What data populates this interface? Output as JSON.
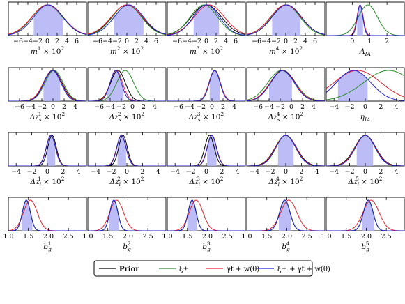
{
  "colors": {
    "prior": "#000000",
    "xi": "#2a8a2a",
    "gamma": "#e0202a",
    "combined": "#2020d0",
    "band": "#b0b0f5"
  },
  "legend": {
    "items": [
      {
        "key": "prior",
        "label": "Prior"
      },
      {
        "key": "xi",
        "label": "ξ±"
      },
      {
        "key": "gamma",
        "label": "γt + w(θ)"
      },
      {
        "key": "combined",
        "label": "ξ± + γt + w(θ)"
      }
    ]
  },
  "chart_data": [
    {
      "row": 0,
      "col": 0,
      "type": "line",
      "param": "m1",
      "xlabel": "m^1 × 10^2",
      "xlim": [
        -8,
        8
      ],
      "xticks": [
        -6,
        -4,
        -2,
        0,
        2,
        4,
        6
      ],
      "series": {
        "prior": [
          0,
          3.1
        ],
        "xi": [
          0,
          3.1
        ],
        "gamma": [
          0,
          3.2
        ],
        "combined": [
          0.2,
          3.0
        ]
      },
      "band": [
        -2.8,
        3.2
      ]
    },
    {
      "row": 0,
      "col": 1,
      "type": "line",
      "param": "m2",
      "xlabel": "m^2 × 10^2",
      "xlim": [
        -8,
        8
      ],
      "xticks": [
        -6,
        -4,
        -2,
        0,
        2,
        4,
        6
      ],
      "series": {
        "prior": [
          0,
          3.1
        ],
        "xi": [
          0,
          3.0
        ],
        "gamma": [
          0,
          3.2
        ],
        "combined": [
          0.4,
          3.0
        ]
      },
      "band": [
        -2.6,
        3.4
      ]
    },
    {
      "row": 0,
      "col": 2,
      "type": "line",
      "param": "m3",
      "xlabel": "m^3 × 10^2",
      "xlim": [
        -8,
        8
      ],
      "xticks": [
        -6,
        -4,
        -2,
        0,
        2,
        4,
        6
      ],
      "series": {
        "prior": [
          0,
          3.1
        ],
        "xi": [
          -0.5,
          2.8
        ],
        "gamma": [
          0.6,
          3.1
        ],
        "combined": [
          0,
          2.7
        ]
      },
      "band": [
        -2.6,
        2.6
      ]
    },
    {
      "row": 0,
      "col": 3,
      "type": "line",
      "param": "m4",
      "xlabel": "m^4 × 10^2",
      "xlim": [
        -8,
        8
      ],
      "xticks": [
        -6,
        -4,
        -2,
        0,
        2,
        4,
        6
      ],
      "series": {
        "prior": [
          0,
          3.1
        ],
        "xi": [
          0,
          2.9
        ],
        "gamma": [
          0,
          3.1
        ],
        "combined": [
          0.2,
          3.0
        ]
      },
      "band": [
        -2.8,
        3.0
      ]
    },
    {
      "row": 0,
      "col": 4,
      "type": "line",
      "param": "A_IA",
      "xlabel": "A_IA",
      "xlim": [
        -1.5,
        3
      ],
      "xticks": [
        0,
        1,
        2
      ],
      "series": {
        "xi": [
          0.9,
          0.55
        ],
        "gamma": [
          0.45,
          0.18
        ],
        "combined": [
          0.45,
          0.16
        ]
      },
      "band": [
        0.28,
        0.62
      ]
    },
    {
      "row": 1,
      "col": 0,
      "type": "line",
      "param": "dz_s1",
      "xlabel": "Δz_s^1 × 10^2",
      "xlim": [
        -8,
        6
      ],
      "xticks": [
        -6,
        -4,
        -2,
        0,
        2,
        4
      ],
      "series": {
        "prior": [
          0,
          1.6
        ],
        "xi": [
          0.2,
          1.6
        ],
        "gamma": [
          -0.1,
          1.6
        ],
        "combined": [
          -0.1,
          1.5
        ]
      },
      "band": [
        -1.7,
        1.3
      ]
    },
    {
      "row": 1,
      "col": 1,
      "type": "line",
      "param": "dz_s2",
      "xlabel": "Δz_s^2 × 10^2",
      "xlim": [
        -8,
        6
      ],
      "xticks": [
        -6,
        -4,
        -2,
        0,
        2,
        4
      ],
      "series": {
        "prior": [
          -2.6,
          1.3
        ],
        "xi": [
          -1.3,
          1.5
        ],
        "gamma": [
          -2.9,
          1.1
        ],
        "combined": [
          -3.0,
          1.0
        ]
      },
      "band": [
        -4.6,
        -1.6
      ]
    },
    {
      "row": 1,
      "col": 2,
      "type": "line",
      "param": "dz_s3",
      "xlabel": "Δz_s^3 × 10^2",
      "xlim": [
        -8,
        6
      ],
      "xticks": [
        -6,
        -4,
        -2,
        0,
        2,
        4
      ],
      "series": {
        "prior": [
          0.5,
          1.0
        ],
        "xi": [
          0.5,
          1.0
        ],
        "gamma": [
          0.5,
          1.0
        ],
        "combined": [
          0.5,
          0.95
        ]
      },
      "band": [
        -0.4,
        1.4
      ]
    },
    {
      "row": 1,
      "col": 3,
      "type": "line",
      "param": "dz_s4",
      "xlabel": "Δz_s^4 × 10^2",
      "xlim": [
        -8,
        6
      ],
      "xticks": [
        -6,
        -4,
        -2,
        0,
        2,
        4
      ],
      "series": {
        "prior": [
          -1.5,
          2.2
        ],
        "xi": [
          -1.8,
          2.4
        ],
        "gamma": [
          -1.6,
          2.2
        ],
        "combined": [
          -1.6,
          2.1
        ]
      },
      "band": [
        -4.0,
        0.1
      ]
    },
    {
      "row": 1,
      "col": 4,
      "type": "line",
      "param": "eta_IA",
      "xlabel": "η_IA",
      "xlim": [
        -5,
        5
      ],
      "xticks": [
        -4,
        -2,
        0,
        2,
        4
      ],
      "series": {
        "xi": [
          3.0,
          3.2
        ],
        "gamma": [
          -1.0,
          3.0
        ],
        "combined": [
          -1.5,
          2.2
        ]
      },
      "band": [
        -3.5,
        0.3
      ]
    },
    {
      "row": 2,
      "col": 0,
      "type": "line",
      "param": "dz_l1",
      "xlabel": "Δz_l^1 × 10^2",
      "xlim": [
        -5,
        5
      ],
      "xticks": [
        -4,
        -2,
        0,
        2,
        4
      ],
      "series": {
        "prior": [
          0.6,
          0.55
        ],
        "xi": [
          0.45,
          0.6
        ],
        "gamma": [
          0.45,
          0.6
        ],
        "combined": [
          0.45,
          0.58
        ]
      },
      "band": [
        -0.1,
        1.0
      ]
    },
    {
      "row": 2,
      "col": 1,
      "type": "line",
      "param": "dz_l2",
      "xlabel": "Δz_l^2 × 10^2",
      "xlim": [
        -5,
        5
      ],
      "xticks": [
        -4,
        -2,
        0,
        2,
        4
      ],
      "series": {
        "prior": [
          -0.5,
          0.55
        ],
        "xi": [
          -0.7,
          0.6
        ],
        "gamma": [
          -0.7,
          0.6
        ],
        "combined": [
          -0.7,
          0.58
        ]
      },
      "band": [
        -1.2,
        -0.1
      ]
    },
    {
      "row": 2,
      "col": 2,
      "type": "line",
      "param": "dz_l3",
      "xlabel": "Δz_l^3 × 10^2",
      "xlim": [
        -5,
        5
      ],
      "xticks": [
        -4,
        -2,
        0,
        2,
        4
      ],
      "series": {
        "prior": [
          0.4,
          0.6
        ],
        "xi": [
          0.7,
          0.6
        ],
        "gamma": [
          0.7,
          0.6
        ],
        "combined": [
          0.7,
          0.58
        ]
      },
      "band": [
        0.1,
        1.3
      ]
    },
    {
      "row": 2,
      "col": 3,
      "type": "line",
      "param": "dz_l4",
      "xlabel": "Δz_l^4 × 10^2",
      "xlim": [
        -5,
        5
      ],
      "xticks": [
        -4,
        -2,
        0,
        2,
        4
      ],
      "series": {
        "prior": [
          0,
          1.35
        ],
        "xi": [
          0,
          1.3
        ],
        "gamma": [
          0,
          1.3
        ],
        "combined": [
          0,
          1.25
        ]
      },
      "band": [
        -1.0,
        1.0
      ]
    },
    {
      "row": 2,
      "col": 4,
      "type": "line",
      "param": "dz_l5",
      "xlabel": "Δz_l^5 × 10^2",
      "xlim": [
        -5,
        5
      ],
      "xticks": [
        -4,
        -2,
        0,
        2,
        4
      ],
      "series": {
        "prior": [
          0,
          1.35
        ],
        "xi": [
          0,
          1.3
        ],
        "gamma": [
          0,
          1.3
        ],
        "combined": [
          0,
          1.25
        ]
      },
      "band": [
        -1.1,
        1.0
      ]
    },
    {
      "row": 3,
      "col": 0,
      "type": "line",
      "param": "b_g1",
      "xlabel": "b_g^1",
      "xlim": [
        1.0,
        2.95
      ],
      "xticks": [
        "1.0",
        "1.5",
        "2.0",
        "2.5"
      ],
      "series": {
        "prior": [
          1.45,
          0.1
        ],
        "xi": [
          1.45,
          0.1
        ],
        "gamma": [
          1.55,
          0.17
        ],
        "combined": [
          1.45,
          0.1
        ]
      },
      "band": [
        1.33,
        1.6
      ]
    },
    {
      "row": 3,
      "col": 1,
      "type": "line",
      "param": "b_g2",
      "xlabel": "b_g^2",
      "xlim": [
        1.0,
        2.95
      ],
      "xticks": [
        "1.0",
        "1.5",
        "2.0",
        "2.5"
      ],
      "series": {
        "prior": [
          1.65,
          0.1
        ],
        "xi": [
          1.65,
          0.1
        ],
        "gamma": [
          1.72,
          0.17
        ],
        "combined": [
          1.65,
          0.1
        ]
      },
      "band": [
        1.53,
        1.78
      ]
    },
    {
      "row": 3,
      "col": 2,
      "type": "line",
      "param": "b_g3",
      "xlabel": "b_g^3",
      "xlim": [
        1.0,
        2.95
      ],
      "xticks": [
        "1.0",
        "1.5",
        "2.0",
        "2.5"
      ],
      "series": {
        "prior": [
          1.62,
          0.1
        ],
        "xi": [
          1.62,
          0.1
        ],
        "gamma": [
          1.72,
          0.17
        ],
        "combined": [
          1.62,
          0.1
        ]
      },
      "band": [
        1.5,
        1.74
      ]
    },
    {
      "row": 3,
      "col": 3,
      "type": "line",
      "param": "b_g4",
      "xlabel": "b_g^4",
      "xlim": [
        1.0,
        2.95
      ],
      "xticks": [
        "1.0",
        "1.5",
        "2.0",
        "2.5"
      ],
      "series": {
        "prior": [
          1.95,
          0.13
        ],
        "xi": [
          1.95,
          0.13
        ],
        "gamma": [
          2.05,
          0.2
        ],
        "combined": [
          1.95,
          0.13
        ]
      },
      "band": [
        1.8,
        2.1
      ]
    },
    {
      "row": 3,
      "col": 4,
      "type": "line",
      "param": "b_g5",
      "xlabel": "b_g^5",
      "xlim": [
        1.0,
        2.95
      ],
      "xticks": [
        "1.0",
        "1.5",
        "2.0",
        "2.5"
      ],
      "series": {
        "prior": [
          2.05,
          0.12
        ],
        "xi": [
          2.05,
          0.12
        ],
        "gamma": [
          2.12,
          0.2
        ],
        "combined": [
          2.05,
          0.12
        ]
      },
      "band": [
        1.9,
        2.2
      ]
    }
  ]
}
